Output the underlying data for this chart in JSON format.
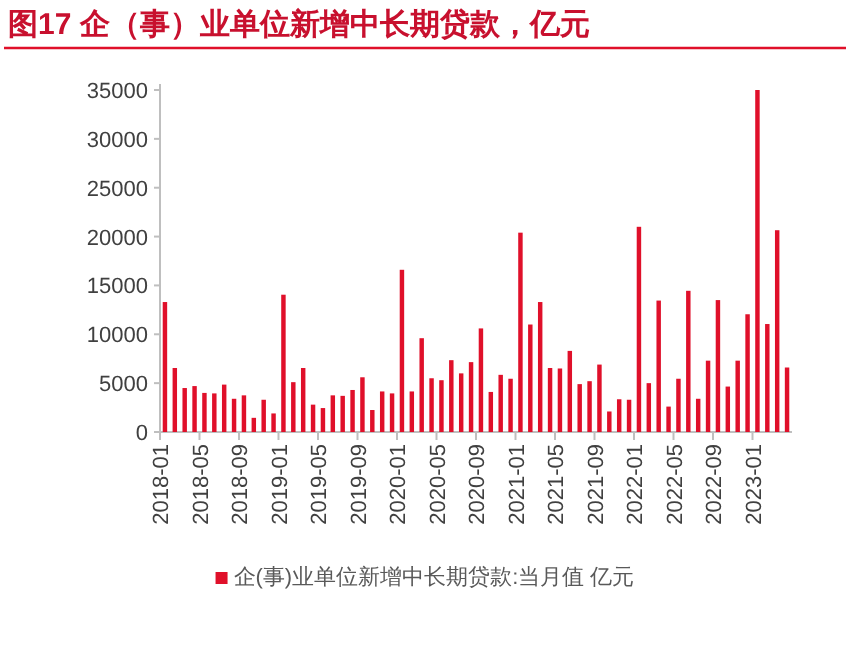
{
  "chart_data": {
    "type": "bar",
    "title": "图17 企（事）业单位新增中长期贷款，亿元",
    "categories": [
      "2018-01",
      null,
      null,
      null,
      "2018-05",
      null,
      null,
      null,
      "2018-09",
      null,
      null,
      null,
      "2019-01",
      null,
      null,
      null,
      "2019-05",
      null,
      null,
      null,
      "2019-09",
      null,
      null,
      null,
      "2020-01",
      null,
      null,
      null,
      "2020-05",
      null,
      null,
      null,
      "2020-09",
      null,
      null,
      null,
      "2021-01",
      null,
      null,
      null,
      "2021-05",
      null,
      null,
      null,
      "2021-09",
      null,
      null,
      null,
      "2022-01",
      null,
      null,
      null,
      "2022-05",
      null,
      null,
      null,
      "2022-09",
      null,
      null,
      null,
      "2023-01",
      null,
      null,
      null
    ],
    "series": [
      {
        "name": "企(事)业单位新增中长期贷款:当月值 亿元",
        "color": "#e0102a",
        "values": [
          13300,
          6550,
          4500,
          4700,
          4000,
          3950,
          4850,
          3400,
          3750,
          1450,
          3300,
          1900,
          14050,
          5100,
          6550,
          2800,
          2450,
          3750,
          3700,
          4300,
          5600,
          2250,
          4150,
          3950,
          16600,
          4150,
          9600,
          5500,
          5300,
          7350,
          6000,
          7150,
          10600,
          4100,
          5850,
          5450,
          20400,
          11000,
          13300,
          6550,
          6500,
          8300,
          4900,
          5200,
          6900,
          2100,
          3350,
          3300,
          21000,
          5000,
          13450,
          2600,
          5450,
          14450,
          3400,
          7300,
          13500,
          4650,
          7300,
          12050,
          35000,
          11050,
          20650,
          6600
        ]
      }
    ],
    "ylim": [
      0,
      35000
    ],
    "yticks": [
      0,
      5000,
      10000,
      15000,
      20000,
      25000,
      30000,
      35000
    ],
    "grid": false,
    "legend": "bottom"
  }
}
